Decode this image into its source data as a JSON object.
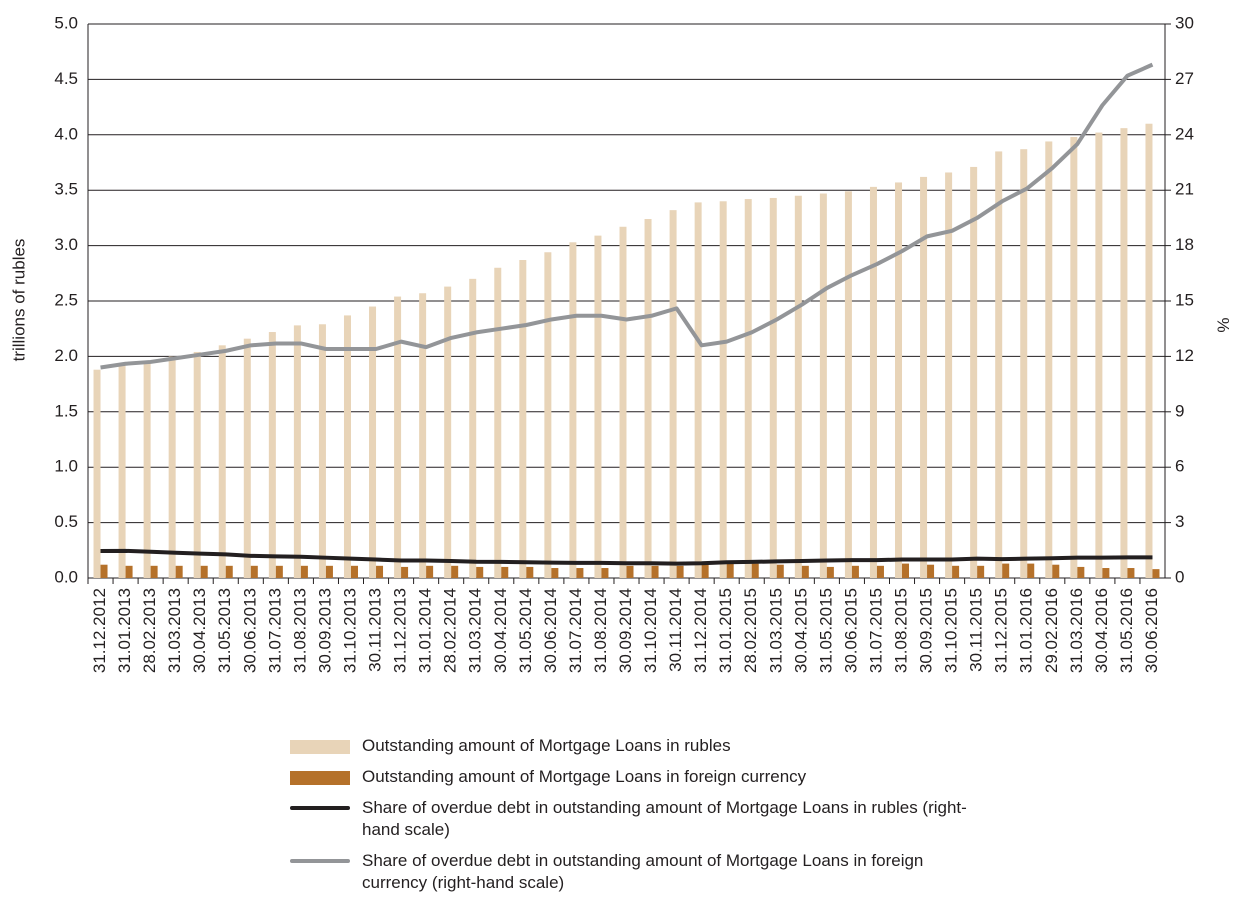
{
  "chart_data": {
    "type": "bar",
    "y_label": "trillions of rubles",
    "y2_label": "%",
    "categories": [
      "31.12.2012",
      "31.01.2013",
      "28.02.2013",
      "31.03.2013",
      "30.04.2013",
      "31.05.2013",
      "30.06.2013",
      "31.07.2013",
      "31.08.2013",
      "30.09.2013",
      "31.10.2013",
      "30.11.2013",
      "31.12.2013",
      "31.01.2014",
      "28.02.2014",
      "31.03.2014",
      "30.04.2014",
      "31.05.2014",
      "30.06.2014",
      "31.07.2014",
      "31.08.2014",
      "30.09.2014",
      "31.10.2014",
      "30.11.2014",
      "31.12.2014",
      "31.01.2015",
      "28.02.2015",
      "31.03.2015",
      "30.04.2015",
      "31.05.2015",
      "30.06.2015",
      "31.07.2015",
      "31.08.2015",
      "30.09.2015",
      "31.10.2015",
      "30.11.2015",
      "31.12.2015",
      "31.01.2016",
      "29.02.2016",
      "31.03.2016",
      "30.04.2016",
      "31.05.2016",
      "30.06.2016"
    ],
    "series": [
      {
        "name": "Outstanding amount of Mortgage Loans in rubles",
        "type": "bar",
        "axis": "y",
        "color": "#e8d4b8",
        "values": [
          1.88,
          1.92,
          1.96,
          2.0,
          2.04,
          2.1,
          2.16,
          2.22,
          2.28,
          2.29,
          2.37,
          2.45,
          2.54,
          2.57,
          2.63,
          2.7,
          2.8,
          2.87,
          2.94,
          3.03,
          3.09,
          3.17,
          3.24,
          3.32,
          3.39,
          3.4,
          3.42,
          3.43,
          3.45,
          3.47,
          3.49,
          3.53,
          3.57,
          3.62,
          3.66,
          3.71,
          3.85,
          3.87,
          3.94,
          3.98,
          4.02,
          4.06,
          4.1
        ]
      },
      {
        "name": "Outstanding amount of Mortgage Loans in foreign currency",
        "type": "bar",
        "axis": "y",
        "color": "#b5712a",
        "values": [
          0.12,
          0.11,
          0.11,
          0.11,
          0.11,
          0.11,
          0.11,
          0.11,
          0.11,
          0.11,
          0.11,
          0.11,
          0.1,
          0.11,
          0.11,
          0.1,
          0.1,
          0.1,
          0.09,
          0.09,
          0.09,
          0.11,
          0.11,
          0.11,
          0.12,
          0.13,
          0.13,
          0.12,
          0.11,
          0.1,
          0.11,
          0.11,
          0.13,
          0.12,
          0.11,
          0.11,
          0.13,
          0.13,
          0.12,
          0.1,
          0.09,
          0.09,
          0.08
        ]
      },
      {
        "name": "Share of overdue debt in outstanding amount of Mortgage Loans in rubles (right-hand scale)",
        "type": "line",
        "axis": "y2",
        "color": "#231f20",
        "values": [
          1.46,
          1.47,
          1.42,
          1.37,
          1.32,
          1.28,
          1.2,
          1.17,
          1.15,
          1.1,
          1.05,
          1.0,
          0.95,
          0.95,
          0.92,
          0.88,
          0.87,
          0.85,
          0.83,
          0.82,
          0.82,
          0.8,
          0.8,
          0.78,
          0.8,
          0.85,
          0.87,
          0.9,
          0.92,
          0.95,
          0.97,
          0.97,
          1.0,
          1.0,
          1.0,
          1.05,
          1.02,
          1.05,
          1.07,
          1.1,
          1.1,
          1.12,
          1.12
        ]
      },
      {
        "name": "Share of overdue debt in outstanding amount of Mortgage Loans in foreign currency (right-hand scale)",
        "type": "line",
        "axis": "y2",
        "color": "#939598",
        "values": [
          11.4,
          11.6,
          11.7,
          11.9,
          12.1,
          12.3,
          12.6,
          12.7,
          12.7,
          12.4,
          12.4,
          12.4,
          12.8,
          12.5,
          13.0,
          13.3,
          13.5,
          13.7,
          14.0,
          14.2,
          14.2,
          14.0,
          14.2,
          14.6,
          12.6,
          12.8,
          13.3,
          14.0,
          14.8,
          15.7,
          16.4,
          17.0,
          17.7,
          18.5,
          18.8,
          19.5,
          20.4,
          21.1,
          22.2,
          23.5,
          25.6,
          27.2,
          27.8
        ]
      }
    ],
    "ylim": [
      0,
      5
    ],
    "yticks": [
      {
        "value": 0,
        "label": "0.0"
      },
      0.5,
      {
        "value": 1,
        "label": "1.0"
      },
      1.5,
      {
        "value": 2,
        "label": "2.0"
      },
      2.5,
      {
        "value": 3,
        "label": "3.0"
      },
      3.5,
      {
        "value": 4,
        "label": "4.0"
      },
      4.5,
      {
        "value": 5,
        "label": "5.0"
      }
    ],
    "y2lim": [
      0,
      30
    ],
    "y2ticks": [
      0,
      3,
      6,
      9,
      12,
      15,
      18,
      21,
      24,
      27,
      30
    ],
    "grid": true
  }
}
